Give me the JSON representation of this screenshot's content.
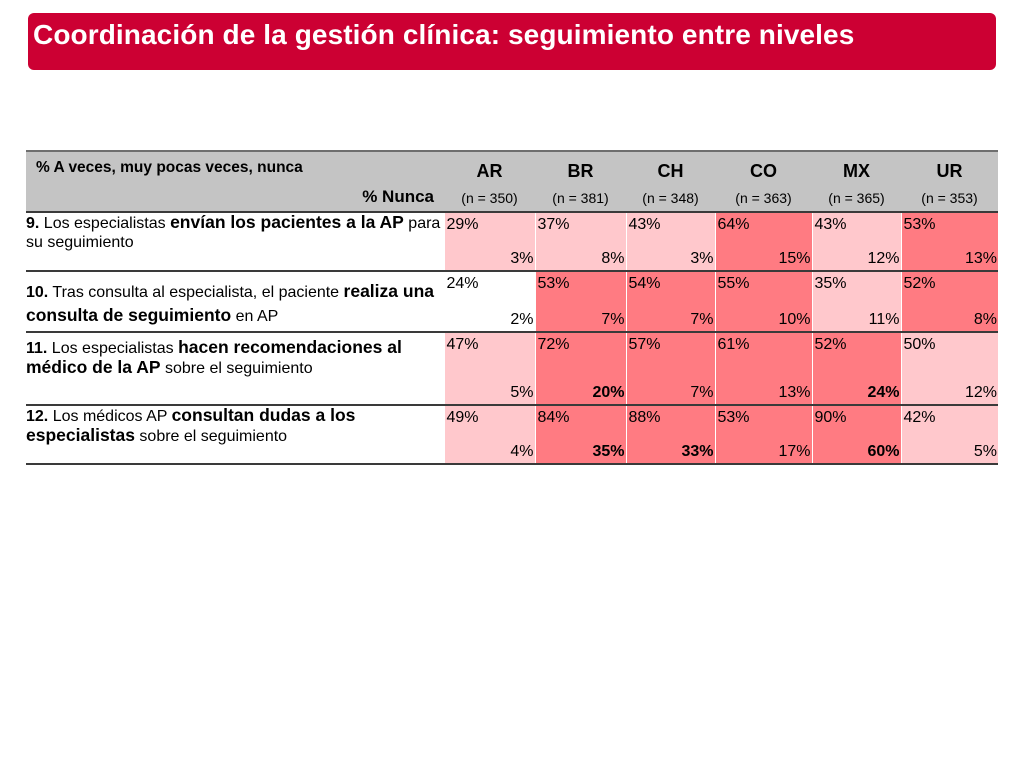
{
  "title": "Coordinación de la gestión clínica: seguimiento entre niveles",
  "table": {
    "header": {
      "label_top": "% A veces, muy pocas veces, nunca",
      "label_bottom": "% Nunca",
      "countries": [
        {
          "code": "AR",
          "n": "(n = 350)"
        },
        {
          "code": "BR",
          "n": "(n = 381)"
        },
        {
          "code": "CH",
          "n": "(n = 348)"
        },
        {
          "code": "CO",
          "n": "(n = 363)"
        },
        {
          "code": "MX",
          "n": "(n = 365)"
        },
        {
          "code": "UR",
          "n": "(n = 353)"
        }
      ]
    },
    "rows": [
      {
        "q": {
          "num": "9.",
          "a": " Los especialistas ",
          "b": "envían los pacientes a la AP",
          "c": " para su seguimiento"
        },
        "cells": [
          {
            "top": "29%",
            "bottom": "3%",
            "bold": false,
            "level": "lvl1"
          },
          {
            "top": "37%",
            "bottom": "8%",
            "bold": false,
            "level": "lvl1"
          },
          {
            "top": "43%",
            "bottom": "3%",
            "bold": false,
            "level": "lvl1"
          },
          {
            "top": "64%",
            "bottom": "15%",
            "bold": false,
            "level": "lvl3"
          },
          {
            "top": "43%",
            "bottom": "12%",
            "bold": false,
            "level": "lvl1"
          },
          {
            "top": "53%",
            "bottom": "13%",
            "bold": false,
            "level": "lvl3"
          }
        ]
      },
      {
        "q": {
          "num": "10.",
          "a": " Tras consulta al especialista, el paciente ",
          "b": "realiza una consulta de seguimiento",
          "c": " en AP"
        },
        "cells": [
          {
            "top": "24%",
            "bottom": "2%",
            "bold": false,
            "level": "lvl0"
          },
          {
            "top": "53%",
            "bottom": "7%",
            "bold": false,
            "level": "lvl3"
          },
          {
            "top": "54%",
            "bottom": "7%",
            "bold": false,
            "level": "lvl3"
          },
          {
            "top": "55%",
            "bottom": "10%",
            "bold": false,
            "level": "lvl3"
          },
          {
            "top": "35%",
            "bottom": "11%",
            "bold": false,
            "level": "lvl1"
          },
          {
            "top": "52%",
            "bottom": "8%",
            "bold": false,
            "level": "lvl3"
          }
        ]
      },
      {
        "q": {
          "num": "11.",
          "a": " Los especialistas ",
          "b": "hacen recomendaciones al médico de la AP",
          "c": " sobre el seguimiento"
        },
        "cells": [
          {
            "top": "47%",
            "bottom": "5%",
            "bold": false,
            "level": "lvl1"
          },
          {
            "top": "72%",
            "bottom": "20%",
            "bold": true,
            "level": "lvl3"
          },
          {
            "top": "57%",
            "bottom": "7%",
            "bold": false,
            "level": "lvl3"
          },
          {
            "top": "61%",
            "bottom": "13%",
            "bold": false,
            "level": "lvl3"
          },
          {
            "top": "52%",
            "bottom": "24%",
            "bold": true,
            "level": "lvl3"
          },
          {
            "top": "50%",
            "bottom": "12%",
            "bold": false,
            "level": "lvl1"
          }
        ]
      },
      {
        "q": {
          "num": "12.",
          "a": " Los médicos AP ",
          "b": "consultan dudas a los especialistas",
          "c": " sobre el seguimiento"
        },
        "cells": [
          {
            "top": "49%",
            "bottom": "4%",
            "bold": false,
            "level": "lvl1"
          },
          {
            "top": "84%",
            "bottom": "35%",
            "bold": true,
            "level": "lvl3"
          },
          {
            "top": "88%",
            "bottom": "33%",
            "bold": true,
            "level": "lvl3"
          },
          {
            "top": "53%",
            "bottom": "17%",
            "bold": false,
            "level": "lvl3"
          },
          {
            "top": "90%",
            "bottom": "60%",
            "bold": true,
            "level": "lvl3"
          },
          {
            "top": "42%",
            "bottom": "5%",
            "bold": false,
            "level": "lvl1"
          }
        ]
      }
    ]
  }
}
